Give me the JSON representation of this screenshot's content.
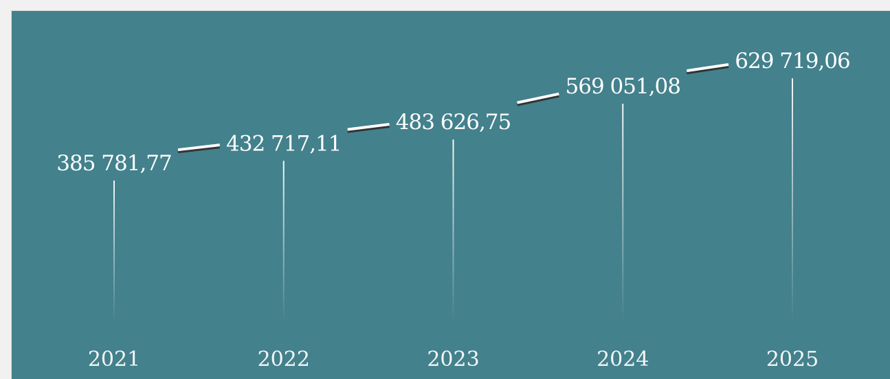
{
  "chart_data": {
    "type": "line",
    "categories": [
      "2021",
      "2022",
      "2023",
      "2024",
      "2025"
    ],
    "values": [
      385781.77,
      432717.11,
      483626.75,
      569051.08,
      629719.06
    ],
    "value_labels": [
      "385 781,77",
      "432 717,11",
      "483 626,75",
      "569 051,08",
      "629 719,06"
    ],
    "title": "",
    "xlabel": "",
    "ylabel": "",
    "grid": false,
    "legend": "none",
    "colors": {
      "background": "#43818c",
      "line": "#ffffff",
      "line_shadow": "#333333",
      "text": "#ffffff"
    }
  }
}
